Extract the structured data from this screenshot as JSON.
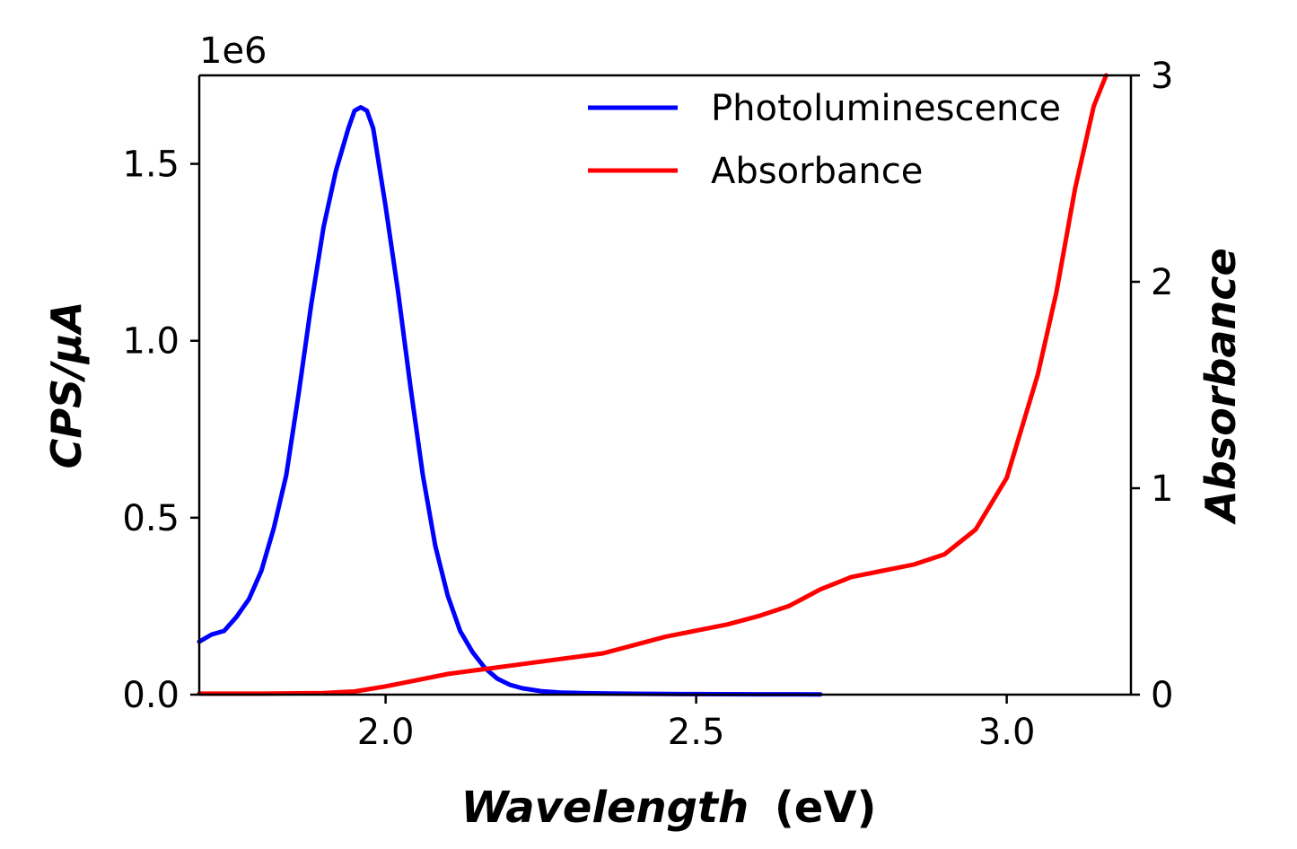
{
  "chart_data": {
    "type": "line",
    "x_axis": {
      "label_italic": "Wavelength",
      "label_unit": "(eV)",
      "range": [
        1.7,
        3.2
      ],
      "ticks": [
        2.0,
        2.5,
        3.0
      ],
      "tick_labels": [
        "2.0",
        "2.5",
        "3.0"
      ]
    },
    "y_left": {
      "label": "CPS/μA",
      "range": [
        0,
        1750000
      ],
      "offset_label": "1e6",
      "ticks": [
        0,
        500000,
        1000000,
        1500000
      ],
      "tick_labels": [
        "0.0",
        "0.5",
        "1.0",
        "1.5"
      ]
    },
    "y_right": {
      "label": "Absorbance",
      "range": [
        0,
        3
      ],
      "ticks": [
        0,
        1,
        2,
        3
      ],
      "tick_labels": [
        "0",
        "1",
        "2",
        "3"
      ]
    },
    "legend": {
      "placement": "upper-center-right",
      "entries": [
        "Photoluminescence",
        "Absorbance"
      ]
    },
    "grid": false,
    "series": [
      {
        "name": "Photoluminescence",
        "axis": "left",
        "color": "#0000ff",
        "x": [
          1.7,
          1.72,
          1.74,
          1.76,
          1.78,
          1.8,
          1.82,
          1.84,
          1.86,
          1.88,
          1.9,
          1.92,
          1.94,
          1.95,
          1.96,
          1.97,
          1.98,
          2.0,
          2.02,
          2.04,
          2.06,
          2.08,
          2.1,
          2.12,
          2.14,
          2.16,
          2.18,
          2.2,
          2.22,
          2.25,
          2.28,
          2.32,
          2.36,
          2.4,
          2.5,
          2.6,
          2.7
        ],
        "y": [
          150000,
          170000,
          180000,
          220000,
          270000,
          350000,
          470000,
          620000,
          850000,
          1100000,
          1320000,
          1480000,
          1600000,
          1650000,
          1660000,
          1650000,
          1600000,
          1380000,
          1140000,
          870000,
          620000,
          420000,
          280000,
          180000,
          120000,
          75000,
          45000,
          28000,
          18000,
          10000,
          6000,
          4000,
          3000,
          2500,
          1500,
          1000,
          800
        ]
      },
      {
        "name": "Absorbance",
        "axis": "right",
        "color": "#ff0000",
        "x": [
          1.7,
          1.8,
          1.9,
          1.95,
          2.0,
          2.05,
          2.1,
          2.15,
          2.2,
          2.25,
          2.3,
          2.35,
          2.4,
          2.45,
          2.5,
          2.55,
          2.6,
          2.65,
          2.7,
          2.75,
          2.8,
          2.85,
          2.9,
          2.95,
          3.0,
          3.05,
          3.08,
          3.11,
          3.14,
          3.16
        ],
        "y": [
          0.005,
          0.005,
          0.008,
          0.015,
          0.04,
          0.07,
          0.1,
          0.12,
          0.14,
          0.16,
          0.18,
          0.2,
          0.24,
          0.28,
          0.31,
          0.34,
          0.38,
          0.43,
          0.51,
          0.57,
          0.6,
          0.63,
          0.68,
          0.8,
          1.05,
          1.55,
          1.95,
          2.45,
          2.85,
          3.0
        ]
      }
    ]
  }
}
